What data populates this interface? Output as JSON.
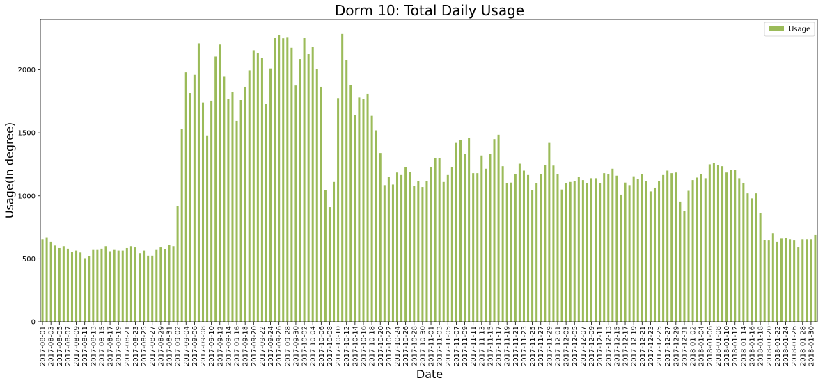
{
  "chart_data": {
    "type": "bar",
    "title": "Dorm 10: Total Daily Usage",
    "xlabel": "Date",
    "ylabel": "Usage(In degree)",
    "ylim": [
      0,
      2400
    ],
    "yticks": [
      0,
      500,
      1000,
      1500,
      2000
    ],
    "grid": false,
    "legend": {
      "position": "top-right",
      "entries": [
        "Usage"
      ]
    },
    "colors": {
      "bar": "#9bbb59",
      "bar_edge": "#8aab4a"
    },
    "start_date": "2017-08-01",
    "dates": [
      "2017-08-01",
      "2017-08-02",
      "2017-08-03",
      "2017-08-04",
      "2017-08-05",
      "2017-08-06",
      "2017-08-07",
      "2017-08-08",
      "2017-08-09",
      "2017-08-10",
      "2017-08-11",
      "2017-08-12",
      "2017-08-13",
      "2017-08-14",
      "2017-08-15",
      "2017-08-16",
      "2017-08-17",
      "2017-08-18",
      "2017-08-19",
      "2017-08-20",
      "2017-08-21",
      "2017-08-22",
      "2017-08-23",
      "2017-08-24",
      "2017-08-25",
      "2017-08-26",
      "2017-08-27",
      "2017-08-28",
      "2017-08-29",
      "2017-08-30",
      "2017-08-31",
      "2017-09-01",
      "2017-09-02",
      "2017-09-03",
      "2017-09-04",
      "2017-09-05",
      "2017-09-06",
      "2017-09-07",
      "2017-09-08",
      "2017-09-09",
      "2017-09-10",
      "2017-09-11",
      "2017-09-12",
      "2017-09-13",
      "2017-09-14",
      "2017-09-15",
      "2017-09-16",
      "2017-09-17",
      "2017-09-18",
      "2017-09-19",
      "2017-09-20",
      "2017-09-21",
      "2017-09-22",
      "2017-09-23",
      "2017-09-24",
      "2017-09-25",
      "2017-09-26",
      "2017-09-27",
      "2017-09-28",
      "2017-09-29",
      "2017-09-30",
      "2017-10-01",
      "2017-10-02",
      "2017-10-03",
      "2017-10-04",
      "2017-10-05",
      "2017-10-06",
      "2017-10-07",
      "2017-10-08",
      "2017-10-09",
      "2017-10-10",
      "2017-10-11",
      "2017-10-12",
      "2017-10-13",
      "2017-10-14",
      "2017-10-15",
      "2017-10-16",
      "2017-10-17",
      "2017-10-18",
      "2017-10-19",
      "2017-10-20",
      "2017-10-21",
      "2017-10-22",
      "2017-10-23",
      "2017-10-24",
      "2017-10-25",
      "2017-10-26",
      "2017-10-27",
      "2017-10-28",
      "2017-10-29",
      "2017-10-30",
      "2017-10-31",
      "2017-11-01",
      "2017-11-02",
      "2017-11-03",
      "2017-11-04",
      "2017-11-05",
      "2017-11-06",
      "2017-11-07",
      "2017-11-08",
      "2017-11-09",
      "2017-11-10",
      "2017-11-11",
      "2017-11-12",
      "2017-11-13",
      "2017-11-14",
      "2017-11-15",
      "2017-11-16",
      "2017-11-17",
      "2017-11-18",
      "2017-11-19",
      "2017-11-20",
      "2017-11-21",
      "2017-11-22",
      "2017-11-23",
      "2017-11-24",
      "2017-11-25",
      "2017-11-26",
      "2017-11-27",
      "2017-11-28",
      "2017-11-29",
      "2017-11-30",
      "2017-12-01",
      "2017-12-02",
      "2017-12-03",
      "2017-12-04",
      "2017-12-05",
      "2017-12-06",
      "2017-12-07",
      "2017-12-08",
      "2017-12-09",
      "2017-12-10",
      "2017-12-11",
      "2017-12-12",
      "2017-12-13",
      "2017-12-14",
      "2017-12-15",
      "2017-12-16",
      "2017-12-17",
      "2017-12-18",
      "2017-12-19",
      "2017-12-20",
      "2017-12-21",
      "2017-12-22",
      "2017-12-23",
      "2017-12-24",
      "2017-12-25",
      "2017-12-26",
      "2017-12-27",
      "2017-12-28",
      "2017-12-29",
      "2017-12-30",
      "2017-12-31",
      "2018-01-01",
      "2018-01-02",
      "2018-01-03",
      "2018-01-04",
      "2018-01-05",
      "2018-01-06",
      "2018-01-07",
      "2018-01-08",
      "2018-01-09",
      "2018-01-10",
      "2018-01-11",
      "2018-01-12",
      "2018-01-13",
      "2018-01-14",
      "2018-01-15",
      "2018-01-16",
      "2018-01-17",
      "2018-01-18",
      "2018-01-19",
      "2018-01-20",
      "2018-01-21",
      "2018-01-22",
      "2018-01-23",
      "2018-01-24",
      "2018-01-25",
      "2018-01-26",
      "2018-01-27",
      "2018-01-28",
      "2018-01-29",
      "2018-01-30",
      "2018-01-31"
    ],
    "series": [
      {
        "name": "Usage",
        "values": [
          655,
          670,
          635,
          605,
          585,
          600,
          580,
          555,
          565,
          550,
          505,
          520,
          570,
          570,
          580,
          600,
          560,
          570,
          565,
          565,
          585,
          600,
          590,
          545,
          565,
          525,
          525,
          570,
          590,
          575,
          610,
          600,
          920,
          1530,
          1980,
          1815,
          1960,
          2210,
          1740,
          1480,
          1755,
          2105,
          2200,
          1945,
          1770,
          1825,
          1595,
          1760,
          1865,
          1995,
          2155,
          2135,
          2095,
          1730,
          2010,
          2255,
          2275,
          2250,
          2260,
          2175,
          1875,
          2085,
          2255,
          2125,
          2180,
          2005,
          1865,
          1045,
          910,
          1110,
          1775,
          2285,
          2080,
          1880,
          1640,
          1780,
          1770,
          1810,
          1635,
          1520,
          1340,
          1085,
          1150,
          1090,
          1185,
          1165,
          1230,
          1190,
          1080,
          1120,
          1070,
          1120,
          1225,
          1300,
          1300,
          1110,
          1165,
          1225,
          1420,
          1445,
          1330,
          1460,
          1180,
          1180,
          1320,
          1215,
          1335,
          1450,
          1485,
          1235,
          1100,
          1105,
          1170,
          1255,
          1200,
          1165,
          1045,
          1100,
          1170,
          1245,
          1420,
          1240,
          1170,
          1050,
          1100,
          1110,
          1115,
          1150,
          1125,
          1100,
          1140,
          1140,
          1100,
          1180,
          1170,
          1215,
          1160,
          1010,
          1105,
          1085,
          1155,
          1135,
          1170,
          1115,
          1035,
          1065,
          1120,
          1165,
          1200,
          1180,
          1185,
          955,
          880,
          1040,
          1125,
          1145,
          1170,
          1140,
          1250,
          1260,
          1245,
          1235,
          1185,
          1205,
          1205,
          1140,
          1100,
          1020,
          980,
          1020,
          865,
          650,
          645,
          705,
          635,
          660,
          665,
          655,
          645,
          590,
          655,
          655,
          655,
          690
        ]
      }
    ]
  }
}
